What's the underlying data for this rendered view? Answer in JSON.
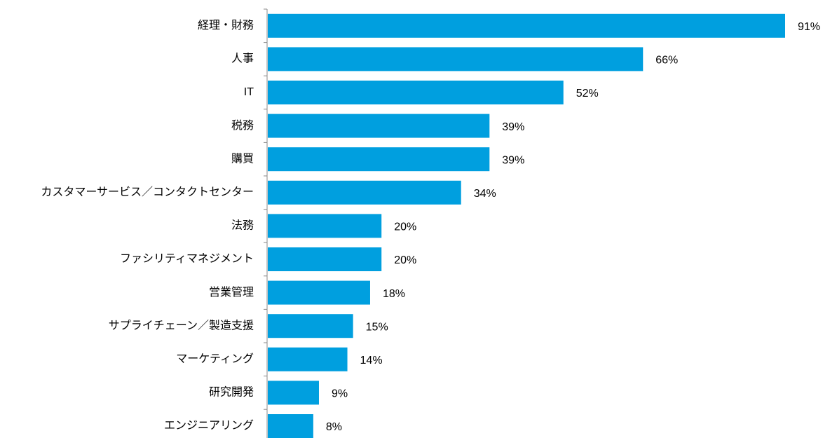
{
  "chart_data": {
    "type": "bar",
    "orientation": "horizontal",
    "categories": [
      "経理・財務",
      "人事",
      "IT",
      "税務",
      "購買",
      "カスタマーサービス／コンタクトセンター",
      "法務",
      "ファシリティマネジメント",
      "営業管理",
      "サプライチェーン／製造支援",
      "マーケティング",
      "研究開発",
      "エンジニアリング"
    ],
    "values": [
      91,
      66,
      52,
      39,
      39,
      34,
      20,
      20,
      18,
      15,
      14,
      9,
      8
    ],
    "value_labels": [
      "91%",
      "66%",
      "52%",
      "39%",
      "39%",
      "34%",
      "20%",
      "20%",
      "18%",
      "15%",
      "14%",
      "9%",
      "8%"
    ],
    "color": "#009fdf"
  }
}
